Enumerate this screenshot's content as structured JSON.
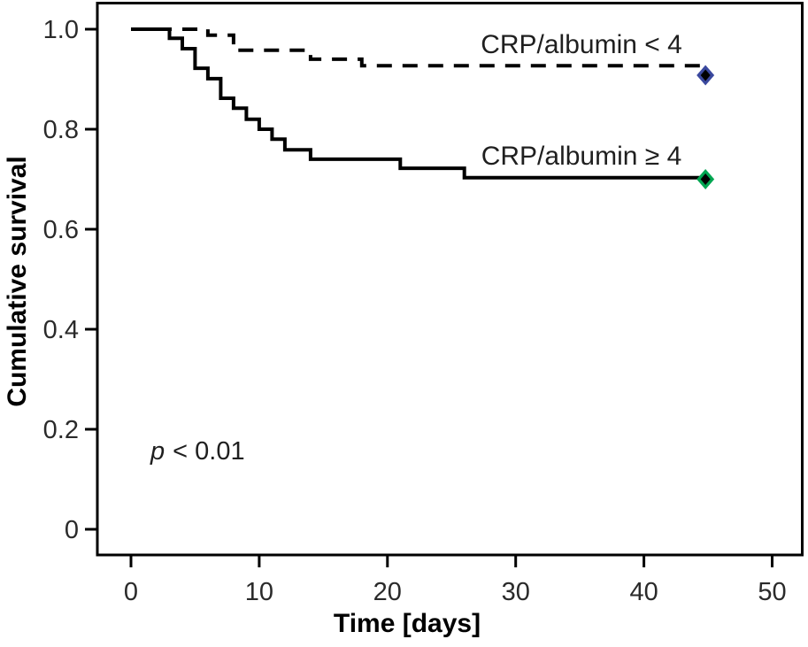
{
  "figure": {
    "p_annotation": {
      "symbol": "p",
      "comparison": "< 0.01"
    },
    "colors": {
      "line": "#000000",
      "frame": "#000000",
      "marker_low_group": "#3a489e",
      "marker_high_group": "#00a651",
      "marker_inner": "#000000",
      "background": "#ffffff"
    }
  },
  "chart_data": {
    "type": "line",
    "subtype": "kaplan-meier-step-curves",
    "title": "",
    "xlabel": "Time [days]",
    "ylabel": "Cumulative survival",
    "xlim": [
      -2.6,
      52.4
    ],
    "ylim": [
      -0.05,
      1.05
    ],
    "xticks": [
      0,
      10,
      20,
      30,
      40,
      50
    ],
    "yticks": [
      1.0,
      0.8,
      0.6,
      0.4,
      0.2,
      0
    ],
    "ytick_labels": [
      "1.0",
      "0.8",
      "0.6",
      "0.4",
      "0.2",
      "0"
    ],
    "grid": false,
    "legend_position": "inline-labels",
    "annotation": "p < 0.01",
    "series": [
      {
        "name": "CRP/albumin < 4",
        "style": "dashed",
        "color": "#000000",
        "marker": "diamond",
        "marker_color": "#3a489e",
        "points": [
          [
            0,
            1.0
          ],
          [
            6,
            1.0
          ],
          [
            6,
            0.988
          ],
          [
            8,
            0.988
          ],
          [
            8,
            0.958
          ],
          [
            14,
            0.958
          ],
          [
            14,
            0.94
          ],
          [
            18,
            0.94
          ],
          [
            18,
            0.927
          ],
          [
            44.8,
            0.927
          ]
        ],
        "end_marker": [
          44.8,
          0.908
        ]
      },
      {
        "name": "CRP/albumin ≥ 4",
        "style": "solid",
        "color": "#000000",
        "marker": "diamond",
        "marker_color": "#00a651",
        "points": [
          [
            0,
            1.0
          ],
          [
            3,
            1.0
          ],
          [
            3,
            0.982
          ],
          [
            4,
            0.982
          ],
          [
            4,
            0.961
          ],
          [
            5,
            0.961
          ],
          [
            5,
            0.922
          ],
          [
            6,
            0.922
          ],
          [
            6,
            0.901
          ],
          [
            7,
            0.901
          ],
          [
            7,
            0.862
          ],
          [
            8,
            0.862
          ],
          [
            8,
            0.842
          ],
          [
            9,
            0.842
          ],
          [
            9,
            0.82
          ],
          [
            10,
            0.82
          ],
          [
            10,
            0.8
          ],
          [
            11,
            0.8
          ],
          [
            11,
            0.78
          ],
          [
            12,
            0.78
          ],
          [
            12,
            0.759
          ],
          [
            14,
            0.759
          ],
          [
            14,
            0.74
          ],
          [
            21,
            0.74
          ],
          [
            21,
            0.722
          ],
          [
            26,
            0.722
          ],
          [
            26,
            0.703
          ],
          [
            44.8,
            0.703
          ]
        ],
        "end_marker": [
          44.8,
          0.7
        ]
      }
    ]
  }
}
